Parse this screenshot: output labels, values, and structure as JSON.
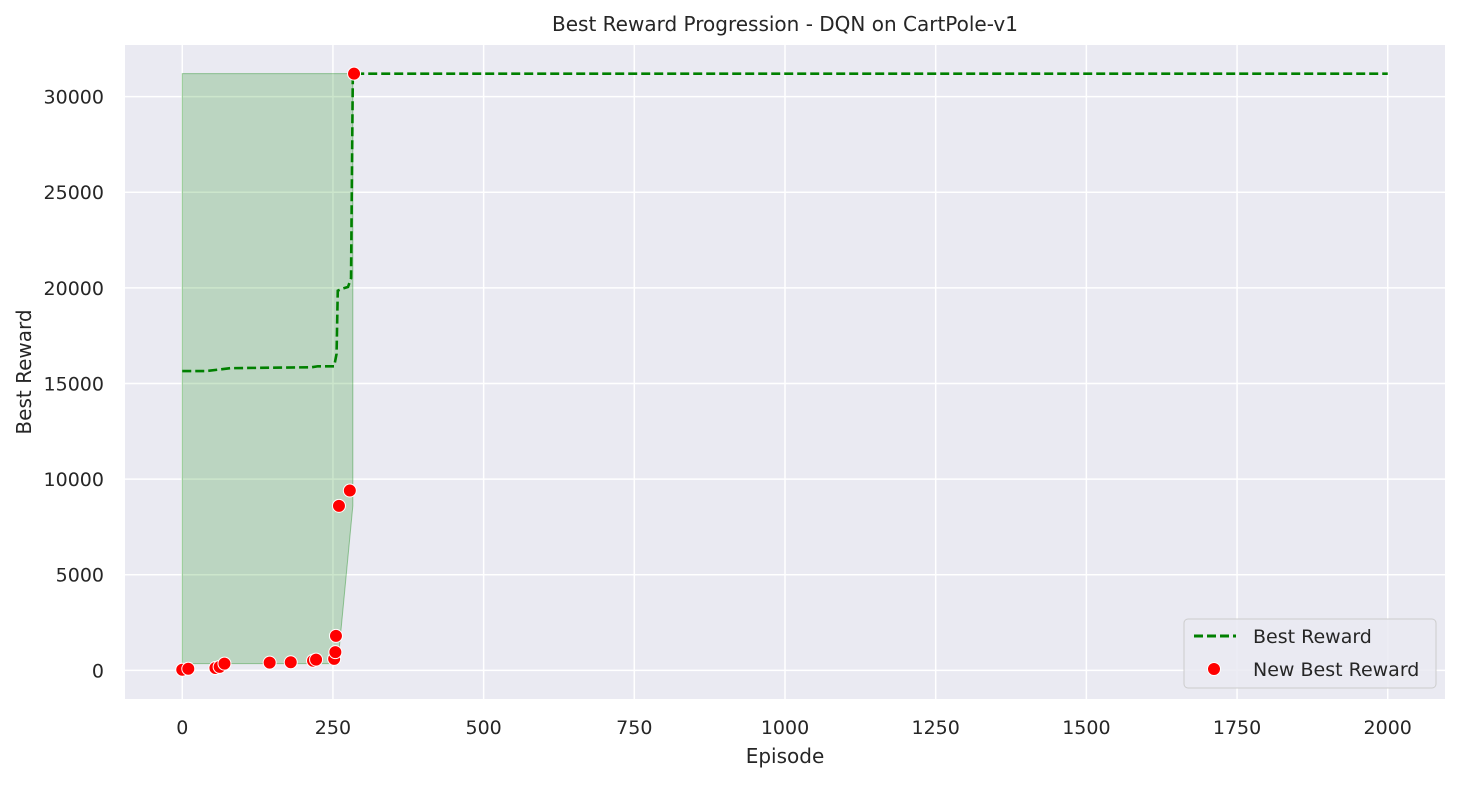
{
  "chart_data": {
    "type": "line",
    "title": "Best Reward Progression - DQN on CartPole-v1",
    "xlabel": "Episode",
    "ylabel": "Best Reward",
    "xlim": [
      -95,
      2095
    ],
    "ylim": [
      -1500,
      32700
    ],
    "x_ticks": [
      0,
      250,
      500,
      750,
      1000,
      1250,
      1500,
      1750,
      2000
    ],
    "y_ticks": [
      0,
      5000,
      10000,
      15000,
      20000,
      25000,
      30000
    ],
    "grid": true,
    "legend_position": "lower right",
    "series": [
      {
        "name": "Best Reward",
        "style": "dashed-line",
        "color": "#008000",
        "x": [
          0,
          40,
          80,
          215,
          225,
          252,
          256,
          258,
          265,
          275,
          280,
          283,
          285,
          2000
        ],
        "y": [
          15650,
          15650,
          15800,
          15850,
          15900,
          15900,
          16550,
          19850,
          19950,
          20050,
          20500,
          31200,
          31200,
          31200
        ]
      },
      {
        "name": "New Best Reward",
        "style": "scatter",
        "color": "#ff0000",
        "x": [
          0,
          10,
          55,
          62,
          70,
          145,
          180,
          217,
          222,
          252,
          254,
          255,
          260,
          278,
          285
        ],
        "y": [
          30,
          80,
          120,
          180,
          350,
          400,
          420,
          500,
          560,
          600,
          950,
          1800,
          8600,
          9400,
          31200
        ]
      }
    ],
    "fill_band": {
      "color": "#008000",
      "opacity": 0.2,
      "x": [
        0,
        258,
        283
      ],
      "y_lower": [
        350,
        350,
        8600
      ],
      "y_upper": [
        31200,
        31200,
        31200
      ]
    }
  }
}
